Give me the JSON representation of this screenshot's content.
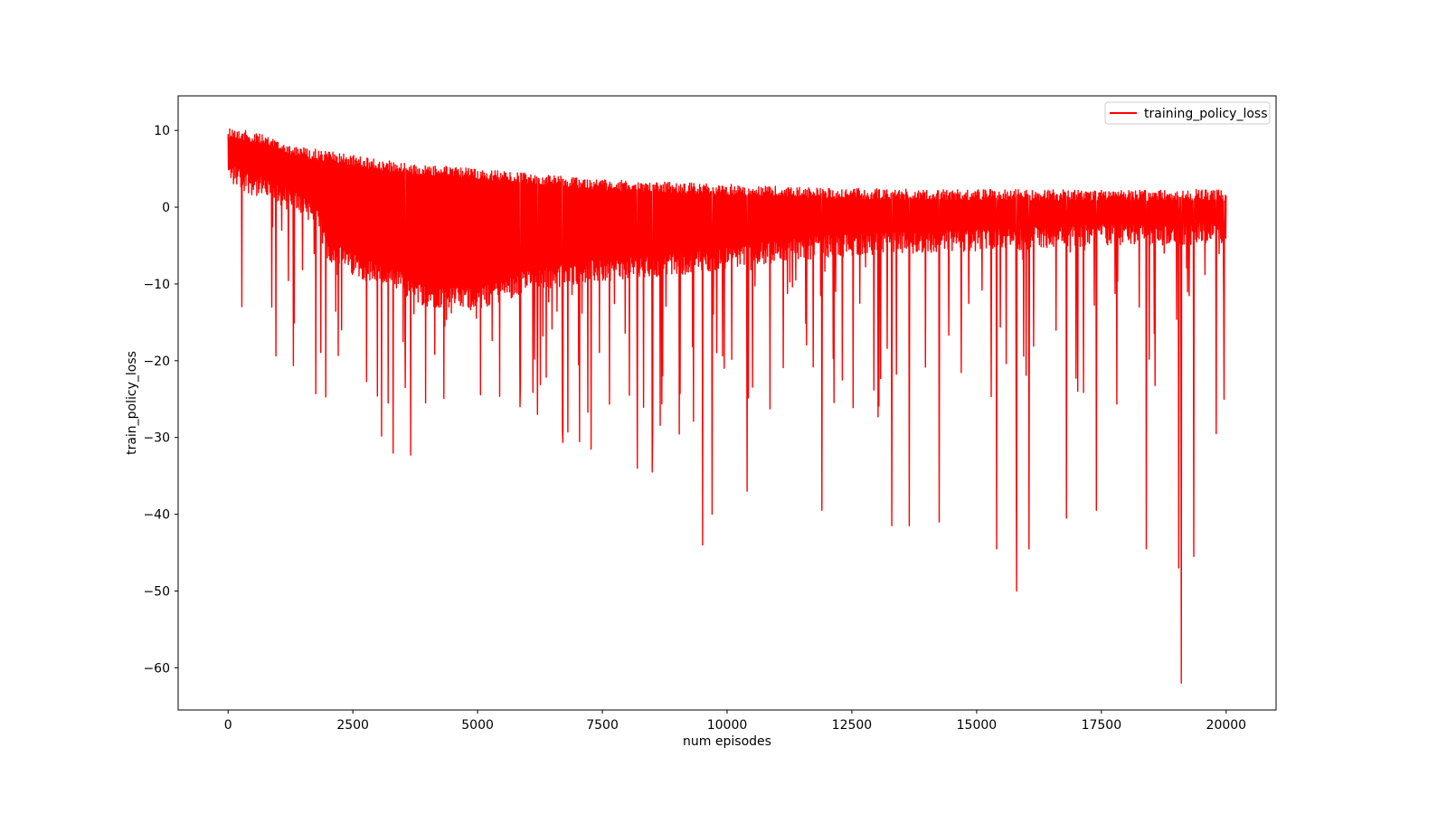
{
  "chart_data": {
    "type": "line",
    "title": "",
    "xlabel": "num episodes",
    "ylabel": "train_policy_loss",
    "xlim": [
      -1000,
      21000
    ],
    "ylim": [
      -65.5,
      14.5
    ],
    "xticks": [
      0,
      2500,
      5000,
      7500,
      10000,
      12500,
      15000,
      17500,
      20000
    ],
    "yticks": [
      10,
      0,
      -10,
      -20,
      -30,
      -40,
      -50,
      -60
    ],
    "xtick_labels": [
      "0",
      "2500",
      "5000",
      "7500",
      "10000",
      "12500",
      "15000",
      "17500",
      "20000"
    ],
    "ytick_labels": [
      "10",
      "0",
      "−10",
      "−20",
      "−30",
      "−40",
      "−50",
      "−60"
    ],
    "grid": false,
    "legend": {
      "placement": "top-right",
      "entries": [
        "training_policy_loss"
      ]
    },
    "series": [
      {
        "name": "training_policy_loss",
        "color": "#ff0000",
        "x_range": [
          0,
          20000
        ],
        "upper_envelope": {
          "x": [
            0,
            200,
            500,
            1000,
            1500,
            2000,
            3000,
            4000,
            5000,
            6000,
            7000,
            8000,
            9000,
            10000,
            11000,
            12000,
            14000,
            16000,
            18000,
            19000,
            20000
          ],
          "y": [
            10.5,
            10.2,
            9.8,
            8.8,
            7.8,
            7.3,
            6.2,
            5.5,
            5.0,
            4.5,
            3.8,
            3.5,
            3.2,
            3.0,
            2.7,
            2.5,
            2.3,
            2.3,
            2.2,
            2.3,
            2.3
          ]
        },
        "lower_envelope": {
          "x": [
            0,
            200,
            500,
            1000,
            1500,
            1800,
            2000,
            2500,
            3000,
            4000,
            5000,
            6000,
            7000,
            8000,
            9000,
            10000,
            12000,
            14000,
            16000,
            18000,
            20000
          ],
          "y": [
            3.0,
            2.5,
            1.5,
            0.0,
            -1.0,
            -3.0,
            -7.0,
            -9.0,
            -10.0,
            -13.0,
            -13.5,
            -11.0,
            -10.0,
            -9.5,
            -9.0,
            -8.0,
            -6.5,
            -6.0,
            -5.5,
            -5.0,
            -5.0
          ]
        },
        "notable_spikes": [
          {
            "x": 3550,
            "y": -23.5
          },
          {
            "x": 3960,
            "y": -25.5
          },
          {
            "x": 5850,
            "y": -26.0
          },
          {
            "x": 6200,
            "y": -27.0
          },
          {
            "x": 6700,
            "y": -29.0
          },
          {
            "x": 8200,
            "y": -34.0
          },
          {
            "x": 8500,
            "y": -34.5
          },
          {
            "x": 9510,
            "y": -44.0
          },
          {
            "x": 9700,
            "y": -40.0
          },
          {
            "x": 10400,
            "y": -37.0
          },
          {
            "x": 11900,
            "y": -39.5
          },
          {
            "x": 13300,
            "y": -41.5
          },
          {
            "x": 13650,
            "y": -41.5
          },
          {
            "x": 14250,
            "y": -41.0
          },
          {
            "x": 15400,
            "y": -44.5
          },
          {
            "x": 15800,
            "y": -50.0
          },
          {
            "x": 16050,
            "y": -44.5
          },
          {
            "x": 16800,
            "y": -40.5
          },
          {
            "x": 17400,
            "y": -39.5
          },
          {
            "x": 18400,
            "y": -44.5
          },
          {
            "x": 19050,
            "y": -47.0
          },
          {
            "x": 19100,
            "y": -62.0
          },
          {
            "x": 19350,
            "y": -45.5
          },
          {
            "x": 19800,
            "y": -29.5
          },
          {
            "x": 19950,
            "y": -12.5
          }
        ]
      }
    ]
  }
}
